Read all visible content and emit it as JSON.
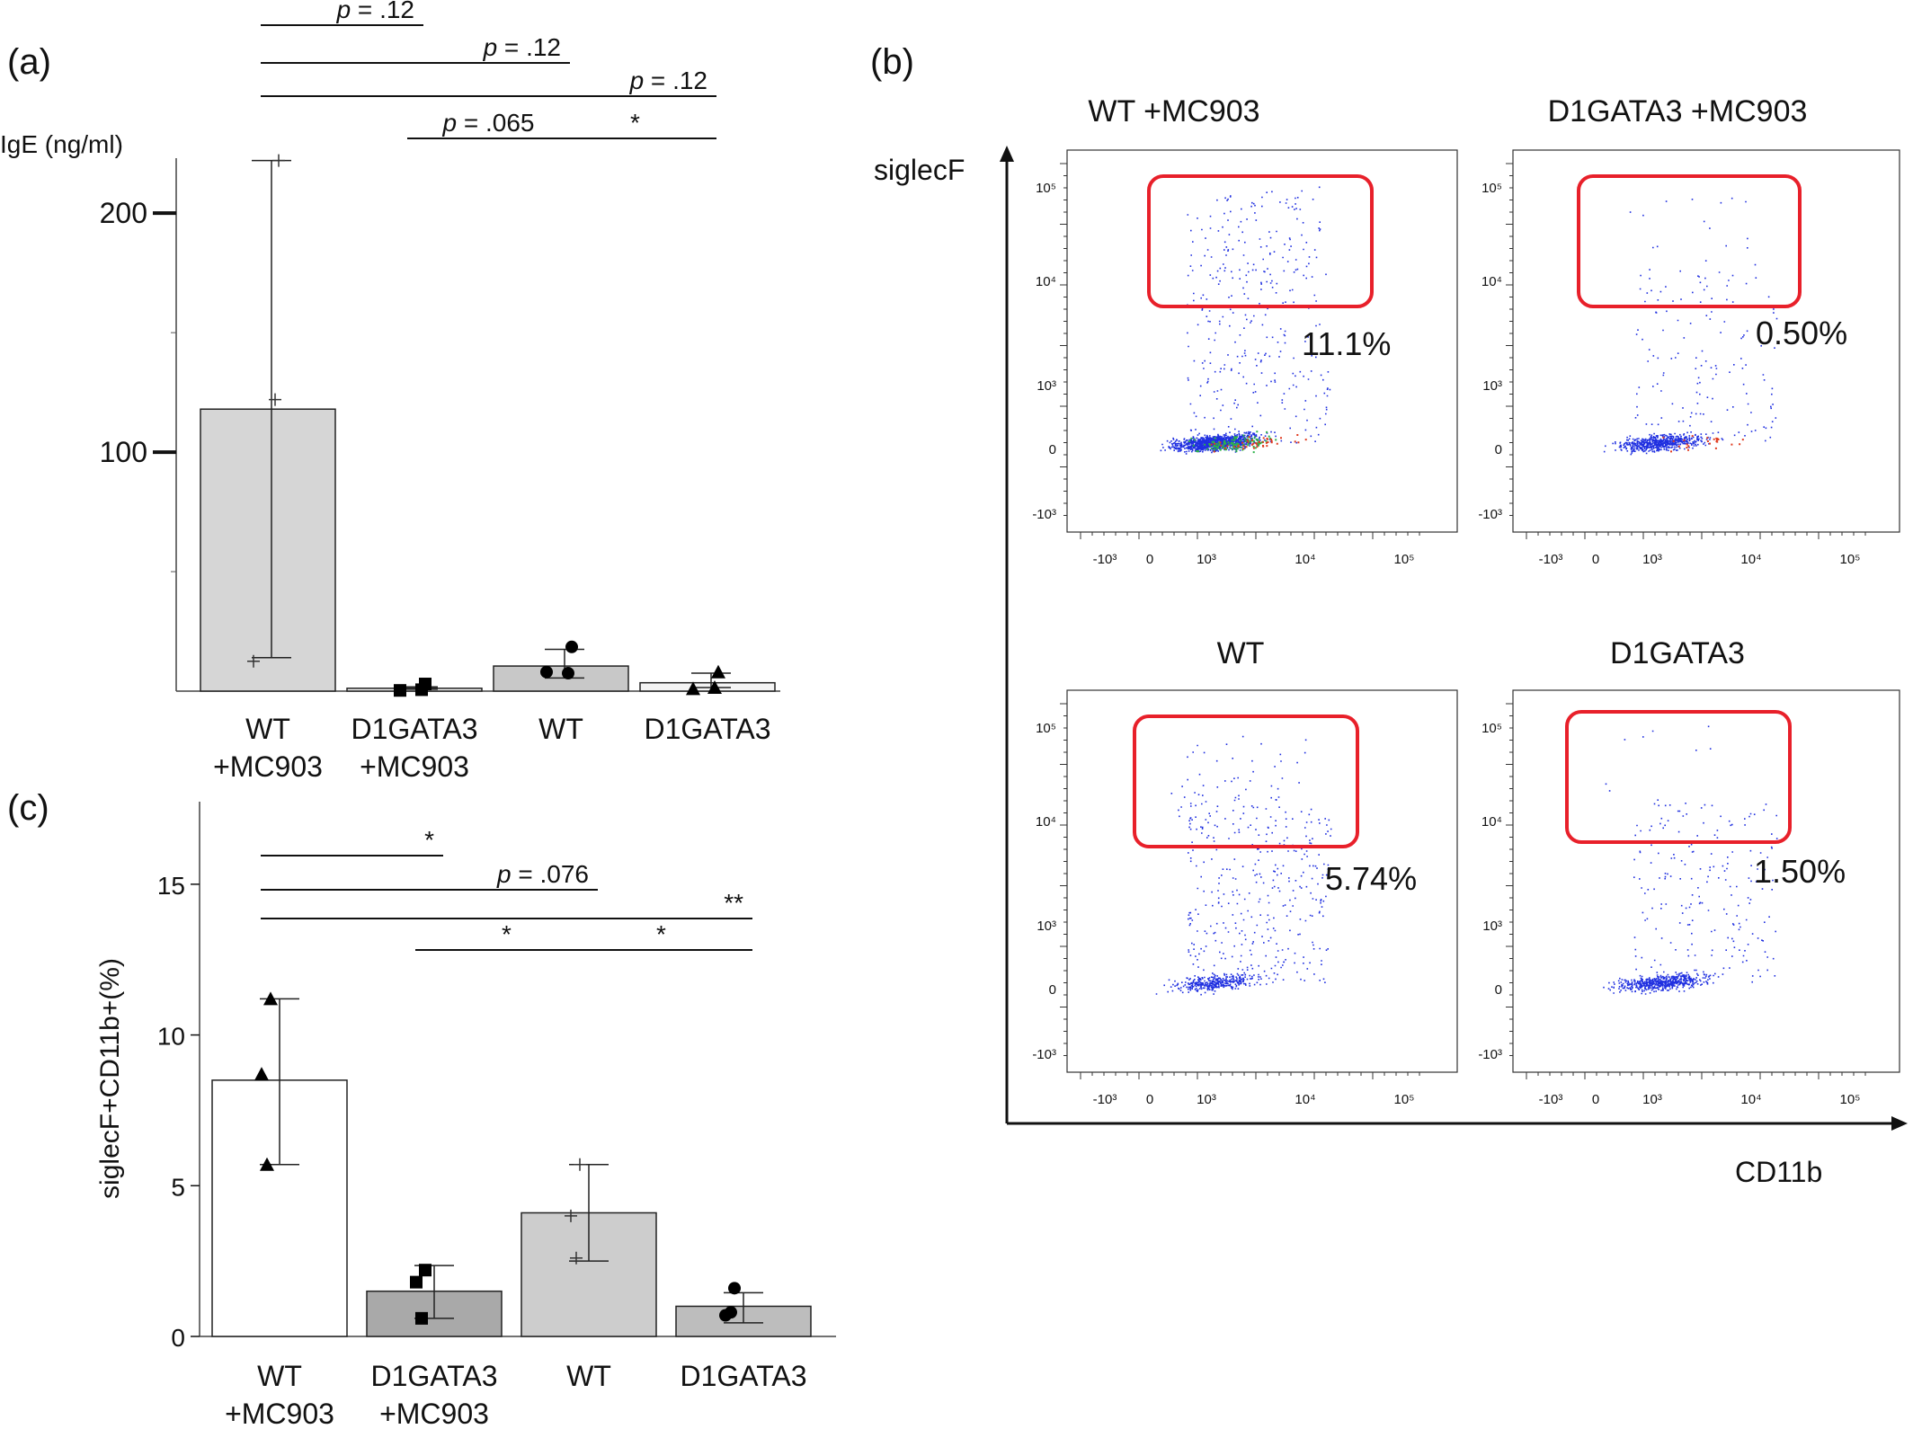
{
  "chart_data": [
    {
      "panel": "(a)",
      "type": "bar",
      "ylabel": "IgE (ng/ml)",
      "ylim": [
        0,
        220
      ],
      "yticks": [
        "100",
        "200"
      ],
      "categories": [
        "WT\n+MC903",
        "D1GATA3\n+MC903",
        "WT",
        "D1GATA3"
      ],
      "fills": [
        "#d6d6d6",
        "#ececec",
        "#c8c8c8",
        "#f4f4f4"
      ],
      "values": [
        118,
        1.2,
        10.5,
        3.5
      ],
      "err_low": [
        14,
        0.8,
        5.5,
        1.5
      ],
      "err_high": [
        222,
        1.8,
        17.5,
        7.5
      ],
      "points": [
        {
          "marker": "plus",
          "values": [
            222,
            122,
            12.5
          ]
        },
        {
          "marker": "square",
          "values": [
            3,
            0.6,
            0.3
          ]
        },
        {
          "marker": "circle",
          "values": [
            18.5,
            7.5,
            8
          ]
        },
        {
          "marker": "triangle",
          "values": [
            8,
            1.5,
            1
          ]
        }
      ],
      "comparisons": [
        {
          "from": 0,
          "to": 1,
          "label_prefix": "p",
          "label": " = .12"
        },
        {
          "from": 0,
          "to": 2,
          "label_prefix": "p",
          "label": " = .12"
        },
        {
          "from": 0,
          "to": 3,
          "label_prefix": "p",
          "label": " = .12"
        },
        {
          "from": 1,
          "to": 2,
          "label_prefix": "p",
          "label": " = .065"
        },
        {
          "from": 2,
          "to": 3,
          "label_prefix": "",
          "label": "*"
        }
      ]
    },
    {
      "panel": "(c)",
      "type": "bar",
      "ylabel": "siglecF+CD11b+(%)",
      "ylim": [
        0,
        17.5
      ],
      "yticks": [
        "0",
        "5",
        "10",
        "15"
      ],
      "categories": [
        "WT\n+MC903",
        "D1GATA3\n+MC903",
        "WT",
        "D1GATA3"
      ],
      "fills": [
        "#ffffff",
        "#a9a9a9",
        "#cdcdcd",
        "#bdbdbd"
      ],
      "values": [
        8.5,
        1.5,
        4.1,
        1.0
      ],
      "err_low": [
        5.7,
        0.6,
        2.5,
        0.45
      ],
      "err_high": [
        11.2,
        2.35,
        5.7,
        1.45
      ],
      "points": [
        {
          "marker": "triangle",
          "values": [
            11.2,
            8.7,
            5.7
          ]
        },
        {
          "marker": "square",
          "values": [
            2.2,
            1.8,
            0.6
          ]
        },
        {
          "marker": "plus",
          "values": [
            5.7,
            4.0,
            2.6
          ]
        },
        {
          "marker": "circle",
          "values": [
            1.6,
            0.7,
            0.8
          ]
        }
      ],
      "comparisons": [
        {
          "from": 0,
          "to": 1,
          "label_prefix": "",
          "label": "*"
        },
        {
          "from": 0,
          "to": 2,
          "label_prefix": "p",
          "label": " = .076"
        },
        {
          "from": 0,
          "to": 3,
          "label_prefix": "",
          "label": "**"
        },
        {
          "from": 1,
          "to": 2,
          "label_prefix": "",
          "label": "*"
        },
        {
          "from": 2,
          "to": 3,
          "label_prefix": "",
          "label": "*"
        }
      ]
    },
    {
      "panel": "(b)",
      "type": "scatter",
      "xlabel": "CD11b",
      "ylabel": "siglecF",
      "x_tick_labels": [
        "-10³",
        "0",
        "10³",
        "10⁴",
        "10⁵"
      ],
      "y_tick_labels": [
        "10⁵",
        "10⁴",
        "10³",
        "0",
        "-10³"
      ],
      "plots": [
        {
          "title": "WT +MC903",
          "percent": "11.1%"
        },
        {
          "title": "D1GATA3 +MC903",
          "percent": "0.50%"
        },
        {
          "title": "WT",
          "percent": "5.74%"
        },
        {
          "title": "D1GATA3",
          "percent": "1.50%"
        }
      ]
    }
  ],
  "colors": {
    "gate": "#e8202a",
    "dots": "#1f2fe0",
    "dense_green": "#2db34a",
    "dense_red": "#e03a1f",
    "axis": "#111111"
  }
}
